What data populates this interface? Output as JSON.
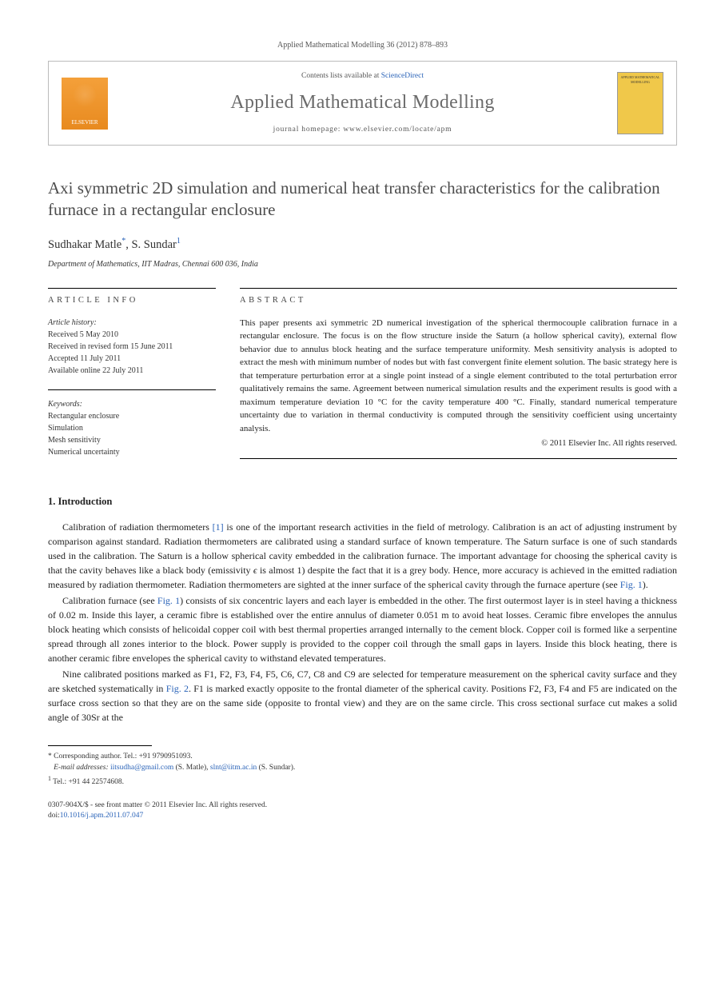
{
  "journal_ref": "Applied Mathematical Modelling 36 (2012) 878–893",
  "header": {
    "elsevier_label": "ELSEVIER",
    "contents_prefix": "Contents lists available at ",
    "contents_link": "ScienceDirect",
    "journal_name": "Applied Mathematical Modelling",
    "homepage_prefix": "journal homepage: ",
    "homepage_url": "www.elsevier.com/locate/apm",
    "cover_text": "APPLIED MATHEMATICAL MODELLING"
  },
  "title": "Axi symmetric 2D simulation and numerical heat transfer characteristics for the calibration furnace in a rectangular enclosure",
  "authors": {
    "a1_name": "Sudhakar Matle",
    "a1_marker": "*",
    "sep": ", ",
    "a2_name": "S. Sundar",
    "a2_marker": "1"
  },
  "affiliation": "Department of Mathematics, IIT Madras, Chennai 600 036, India",
  "info_label": "ARTICLE INFO",
  "abs_label": "ABSTRACT",
  "history": {
    "heading": "Article history:",
    "l1": "Received 5 May 2010",
    "l2": "Received in revised form 15 June 2011",
    "l3": "Accepted 11 July 2011",
    "l4": "Available online 22 July 2011"
  },
  "keywords": {
    "heading": "Keywords:",
    "k1": "Rectangular enclosure",
    "k2": "Simulation",
    "k3": "Mesh sensitivity",
    "k4": "Numerical uncertainty"
  },
  "abstract": "This paper presents axi symmetric 2D numerical investigation of the spherical thermocouple calibration furnace in a rectangular enclosure. The focus is on the flow structure inside the Saturn (a hollow spherical cavity), external flow behavior due to annulus block heating and the surface temperature uniformity. Mesh sensitivity analysis is adopted to extract the mesh with minimum number of nodes but with fast convergent finite element solution. The basic strategy here is that temperature perturbation error at a single point instead of a single element contributed to the total perturbation error qualitatively remains the same. Agreement between numerical simulation results and the experiment results is good with a maximum temperature deviation 10 °C for the cavity temperature 400 °C. Finally, standard numerical temperature uncertainty due to variation in thermal conductivity is computed through the sensitivity coefficient using uncertainty analysis.",
  "copyright": "© 2011 Elsevier Inc. All rights reserved.",
  "section1": {
    "heading": "1. Introduction",
    "p1a": "Calibration of radiation thermometers ",
    "p1_ref": "[1]",
    "p1b": " is one of the important research activities in the field of metrology. Calibration is an act of adjusting instrument by comparison against standard. Radiation thermometers are calibrated using a standard surface of known temperature. The Saturn surface is one of such standards used in the calibration. The Saturn is a hollow spherical cavity embedded in the calibration furnace. The important advantage for choosing the spherical cavity is that the cavity behaves like a black body (emissivity ",
    "p1_eps": "ϵ",
    "p1c": " is almost 1) despite the fact that it is a grey body. Hence, more accuracy is achieved in the emitted radiation measured by radiation thermometer. Radiation thermometers are sighted at the inner surface of the spherical cavity through the furnace aperture (see ",
    "p1_fig": "Fig. 1",
    "p1d": ").",
    "p2a": "Calibration furnace (see ",
    "p2_fig": "Fig. 1",
    "p2b": ") consists of six concentric layers and each layer is embedded in the other. The first outermost layer is in steel having a thickness of 0.02 m. Inside this layer, a ceramic fibre is established over the entire annulus of diameter 0.051 m to avoid heat losses. Ceramic fibre envelopes the annulus block heating which consists of helicoidal copper coil with best thermal properties arranged internally to the cement block. Copper coil is formed like a serpentine spread through all zones interior to the block. Power supply is provided to the copper coil through the small gaps in layers. Inside this block heating, there is another ceramic fibre envelopes the spherical cavity to withstand elevated temperatures.",
    "p3a": "Nine calibrated positions marked as F1, F2, F3, F4, F5, C6, C7, C8 and C9 are selected for temperature measurement on the spherical cavity surface and they are sketched systematically in ",
    "p3_fig": "Fig. 2",
    "p3b": ". F1 is marked exactly opposite to the frontal diameter of the spherical cavity. Positions F2, F3, F4 and F5 are indicated on the surface cross section so that they are on the same side (opposite to frontal view) and they are on the same circle. This cross sectional surface cut makes a solid angle of 30Sr at the"
  },
  "footnotes": {
    "corr_label": "* Corresponding author. Tel.: +91 9790951093.",
    "email_label": "E-mail addresses:",
    "em1": "iitsudha@gmail.com",
    "em1_who": " (S. Matle), ",
    "em2": "slnt@iitm.ac.in",
    "em2_who": " (S. Sundar).",
    "tel1": "Tel.: +91 44 22574608.",
    "tel1_marker": "1"
  },
  "pubfooter": {
    "l1": "0307-904X/$ - see front matter © 2011 Elsevier Inc. All rights reserved.",
    "l2a": "doi:",
    "l2b": "10.1016/j.apm.2011.07.047"
  }
}
